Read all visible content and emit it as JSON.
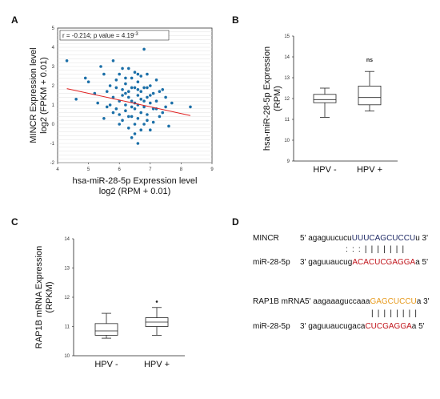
{
  "panels": {
    "a": {
      "letter": "A"
    },
    "b": {
      "letter": "B"
    },
    "c": {
      "letter": "C"
    },
    "d": {
      "letter": "D"
    }
  },
  "chart_data": [
    {
      "type": "scatter",
      "annotation": "r = -0.214; p value = 4.19",
      "annotation_exp": "-3",
      "ylabel_lines": [
        "MINCR Expression level",
        "log2 (FPKM + 0.01)"
      ],
      "xlabel_lines": [
        "hsa-miR-28-5p Expression level",
        "log2 (RPM + 0.01)"
      ],
      "xlim": [
        4,
        9
      ],
      "ylim": [
        -2,
        5
      ],
      "xticks": [
        "4",
        "5",
        "6",
        "7",
        "8",
        "9"
      ],
      "yticks": [
        "5",
        "4",
        "3",
        "2",
        "1",
        "0",
        "-1",
        "-2"
      ],
      "grid": true,
      "point_color": "#1b6fa8",
      "line_color": "#e02020",
      "fit_line": {
        "x": [
          4.3,
          8.3
        ],
        "y": [
          1.85,
          0.45
        ]
      },
      "points": [
        [
          4.3,
          3.3
        ],
        [
          4.6,
          1.3
        ],
        [
          4.9,
          2.4
        ],
        [
          5.0,
          2.2
        ],
        [
          5.2,
          1.6
        ],
        [
          5.3,
          1.1
        ],
        [
          5.4,
          3.0
        ],
        [
          5.5,
          2.6
        ],
        [
          5.6,
          0.9
        ],
        [
          5.6,
          1.7
        ],
        [
          5.7,
          2.0
        ],
        [
          5.8,
          3.3
        ],
        [
          5.8,
          1.4
        ],
        [
          5.9,
          0.8
        ],
        [
          5.9,
          2.3
        ],
        [
          6.0,
          1.2
        ],
        [
          6.0,
          0.5
        ],
        [
          6.0,
          2.6
        ],
        [
          6.1,
          1.8
        ],
        [
          6.1,
          0.2
        ],
        [
          6.1,
          1.5
        ],
        [
          6.2,
          1.0
        ],
        [
          6.2,
          2.1
        ],
        [
          6.2,
          0.7
        ],
        [
          6.3,
          1.4
        ],
        [
          6.3,
          2.9
        ],
        [
          6.3,
          -0.2
        ],
        [
          6.3,
          1.7
        ],
        [
          6.4,
          0.9
        ],
        [
          6.4,
          2.4
        ],
        [
          6.4,
          1.2
        ],
        [
          6.4,
          0.4
        ],
        [
          6.5,
          1.9
        ],
        [
          6.5,
          1.1
        ],
        [
          6.5,
          -0.5
        ],
        [
          6.5,
          2.7
        ],
        [
          6.5,
          0.8
        ],
        [
          6.6,
          1.5
        ],
        [
          6.6,
          0.3
        ],
        [
          6.6,
          2.2
        ],
        [
          6.6,
          1.0
        ],
        [
          6.6,
          -1.0
        ],
        [
          6.7,
          1.7
        ],
        [
          6.7,
          0.6
        ],
        [
          6.7,
          2.5
        ],
        [
          6.7,
          1.3
        ],
        [
          6.8,
          0.0
        ],
        [
          6.8,
          1.9
        ],
        [
          6.8,
          0.9
        ],
        [
          6.8,
          3.9
        ],
        [
          6.9,
          1.4
        ],
        [
          6.9,
          2.6
        ],
        [
          6.9,
          0.5
        ],
        [
          7.0,
          1.1
        ],
        [
          7.0,
          2.0
        ],
        [
          7.0,
          -0.3
        ],
        [
          7.1,
          1.6
        ],
        [
          7.1,
          0.8
        ],
        [
          7.2,
          2.3
        ],
        [
          7.2,
          1.2
        ],
        [
          7.3,
          0.4
        ],
        [
          7.4,
          1.8
        ],
        [
          7.5,
          0.9
        ],
        [
          7.5,
          1.4
        ],
        [
          7.6,
          -0.1
        ],
        [
          7.7,
          1.1
        ],
        [
          5.5,
          0.3
        ],
        [
          5.7,
          1.0
        ],
        [
          5.9,
          1.9
        ],
        [
          6.0,
          0.0
        ],
        [
          6.1,
          2.9
        ],
        [
          6.2,
          1.6
        ],
        [
          6.3,
          0.4
        ],
        [
          6.4,
          1.9
        ],
        [
          6.5,
          0.0
        ],
        [
          6.6,
          1.8
        ],
        [
          6.7,
          -0.3
        ],
        [
          6.8,
          1.2
        ],
        [
          6.9,
          0.2
        ],
        [
          7.0,
          1.5
        ],
        [
          7.1,
          0.1
        ],
        [
          7.3,
          1.7
        ],
        [
          7.4,
          0.6
        ],
        [
          8.3,
          0.9
        ],
        [
          5.8,
          0.6
        ],
        [
          6.2,
          2.4
        ],
        [
          6.4,
          -0.7
        ],
        [
          6.6,
          2.6
        ],
        [
          6.9,
          1.9
        ],
        [
          7.2,
          0.8
        ]
      ]
    },
    {
      "type": "boxplot",
      "ylabel_lines": [
        "hsa-miR-28-5p Expression",
        "(RPM)"
      ],
      "categories": [
        "HPV -",
        "HPV +"
      ],
      "ylim": [
        9,
        15
      ],
      "yticks": [
        "15",
        "14",
        "13",
        "12",
        "11",
        "10",
        "9"
      ],
      "annotation": "ns",
      "boxes": [
        {
          "min": 11.1,
          "q1": 11.8,
          "median": 11.95,
          "q3": 12.2,
          "max": 12.5
        },
        {
          "min": 11.4,
          "q1": 11.7,
          "median": 12.05,
          "q3": 12.6,
          "max": 13.3
        }
      ]
    },
    {
      "type": "boxplot",
      "ylabel_lines": [
        "RAP1B mRNA Expression",
        "(RPKM)"
      ],
      "categories": [
        "HPV -",
        "HPV +"
      ],
      "ylim": [
        10,
        14
      ],
      "yticks": [
        "14",
        "13",
        "12",
        "11",
        "10"
      ],
      "boxes": [
        {
          "min": 10.6,
          "q1": 10.7,
          "median": 10.85,
          "q3": 11.1,
          "max": 11.45
        },
        {
          "min": 10.7,
          "q1": 11.0,
          "median": 11.15,
          "q3": 11.3,
          "max": 11.65,
          "outliers": [
            11.85
          ]
        }
      ]
    }
  ],
  "sequences": {
    "block1": {
      "label1": "MINCR",
      "seq1_plain": "5' agaguucucu",
      "seq1_hl": "UUUCAGCUCCU",
      "seq1_tail": "u 3'",
      "pairs": ": : : | | | | | | |",
      "label2": "miR-28-5p",
      "seq2_plain": "3' gaguuaucug",
      "seq2_hl": "ACACUCGAGGA",
      "seq2_tail": "a 5'"
    },
    "block2": {
      "label1": "RAP1B mRNA",
      "seq1_plain": "5' aagaaaguccaaa",
      "seq1_hl": "GAGCUCCU",
      "seq1_tail": "a 3'",
      "pairs": "| | | | | | | |",
      "label2": "miR-28-5p",
      "seq2_plain": "3' gaguuaucugaca",
      "seq2_hl": "CUCGAGGA",
      "seq2_tail": "a 5'"
    }
  }
}
